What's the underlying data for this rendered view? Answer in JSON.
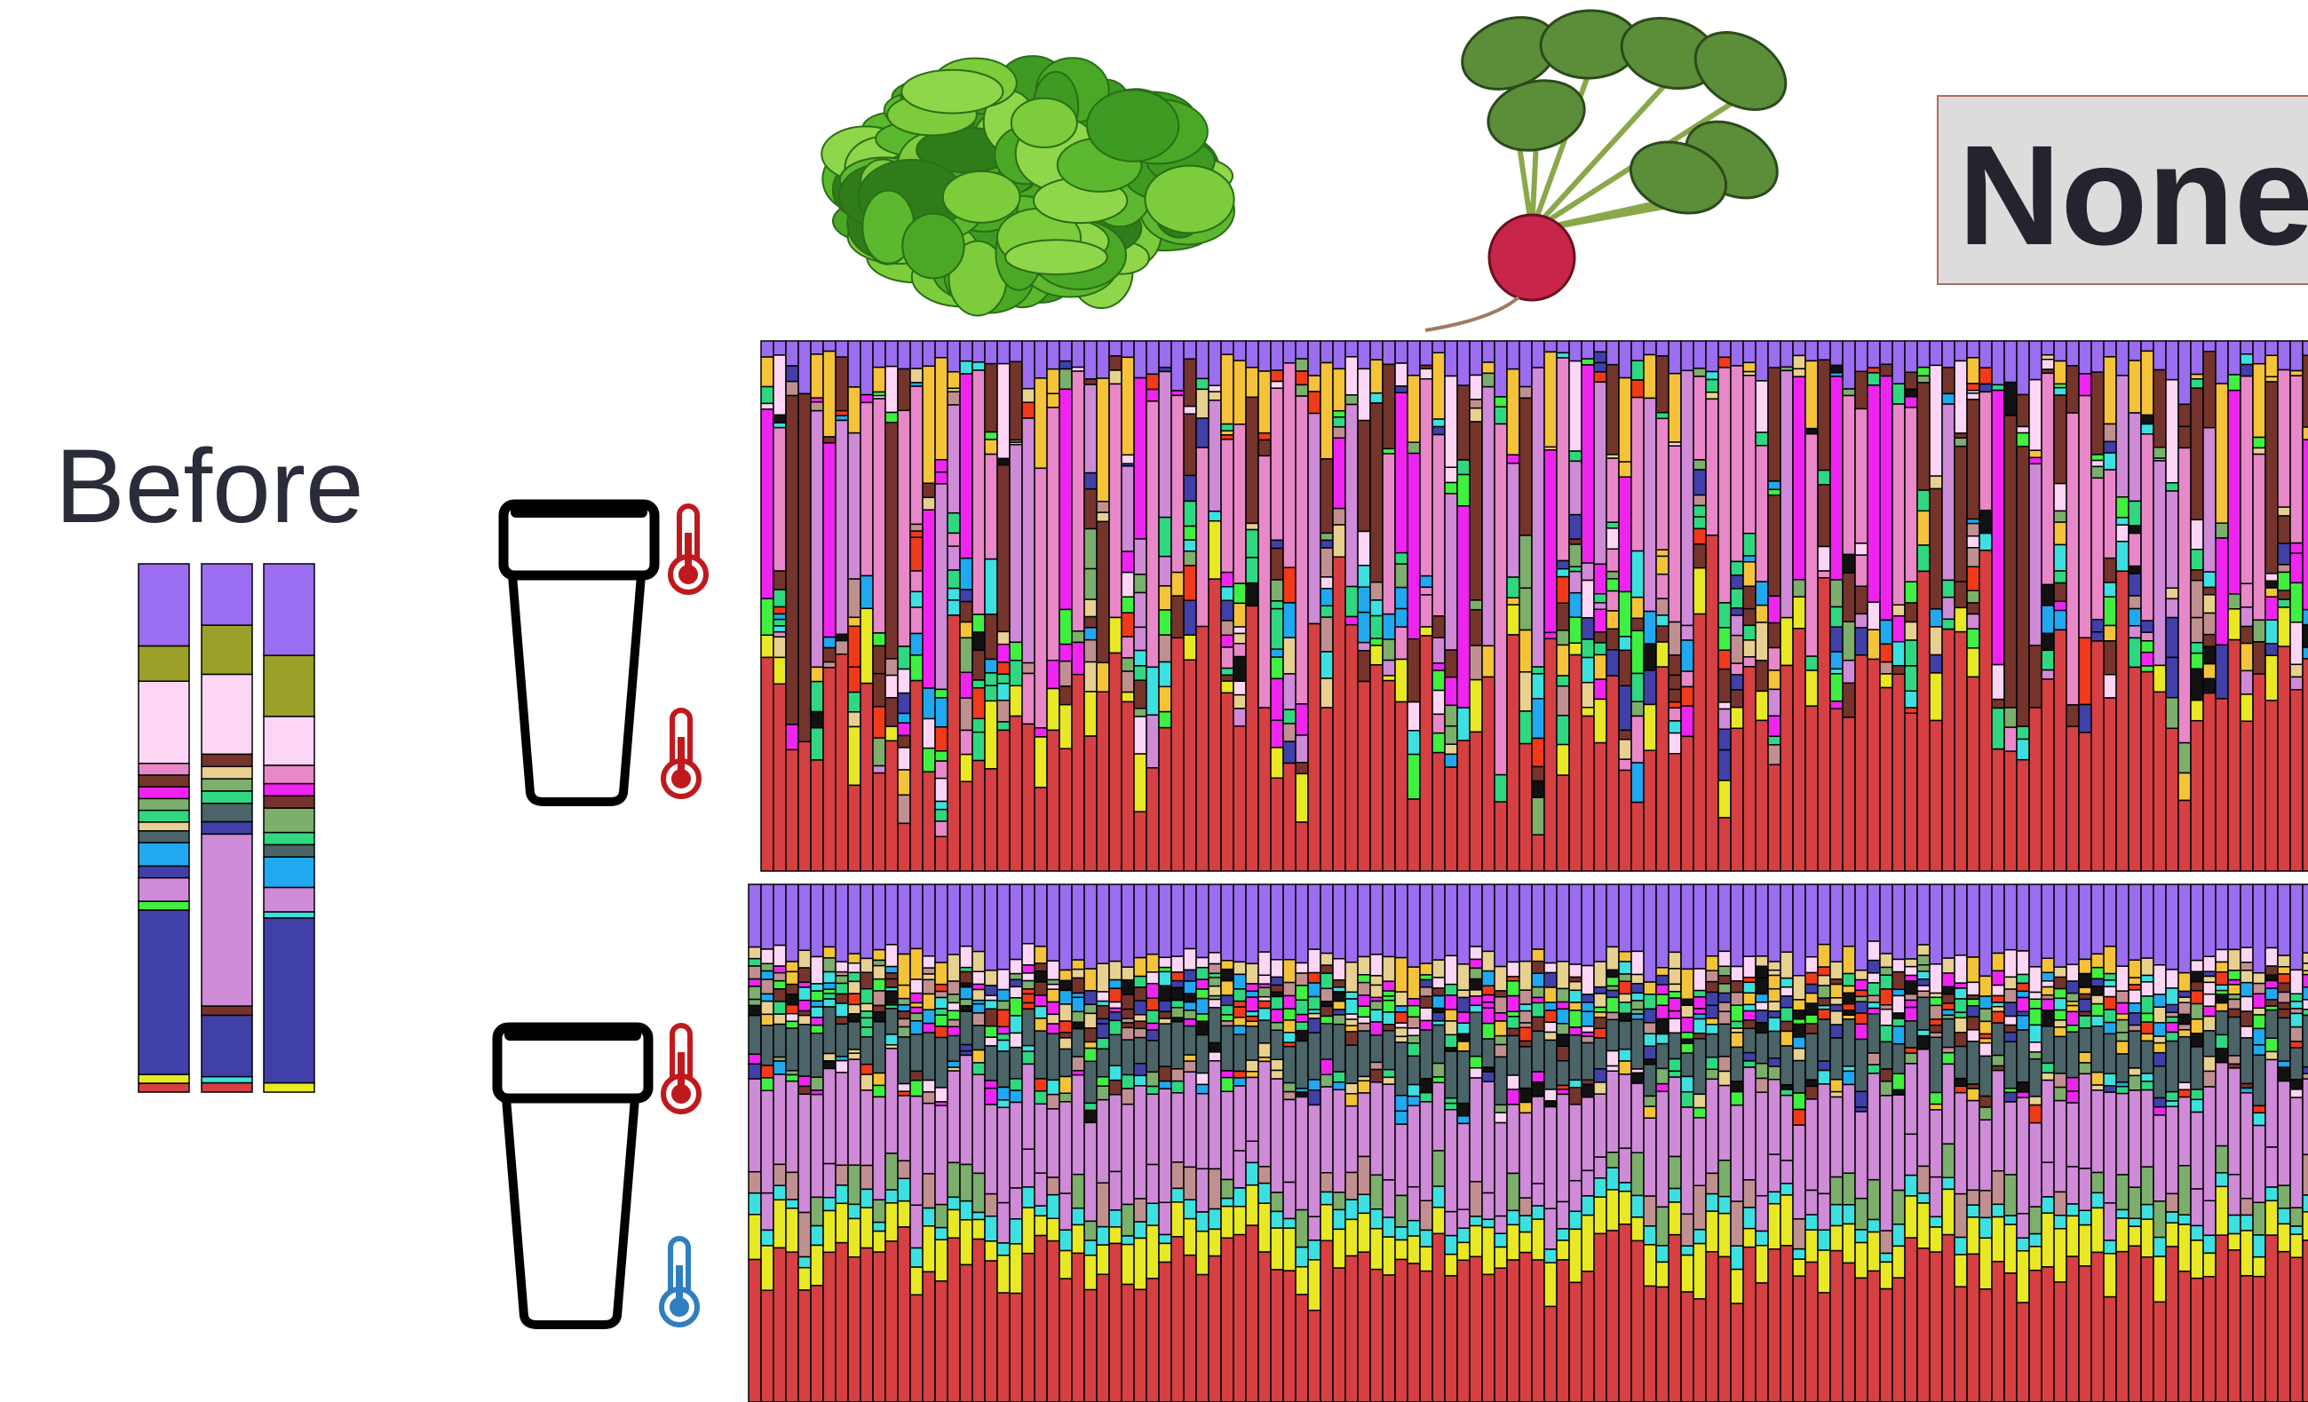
{
  "labels": {
    "before": "Before",
    "none": "None"
  }
}
